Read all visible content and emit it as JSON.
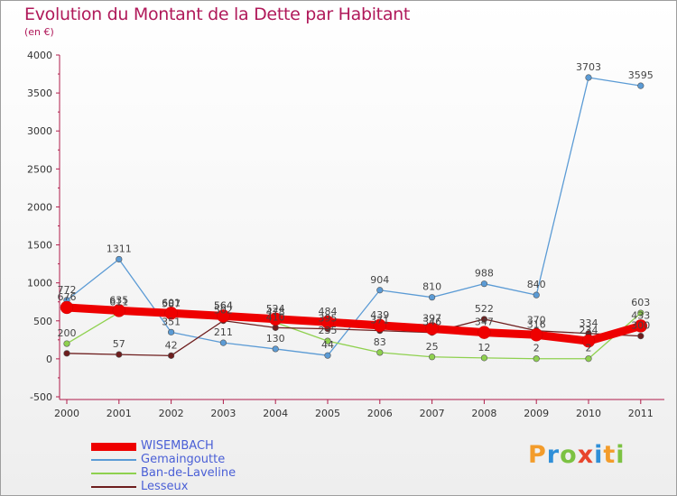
{
  "chart_data": {
    "type": "line",
    "title": "Evolution du Montant de la Dette par Habitant",
    "subtitle": "(en €)",
    "xlabel": "",
    "ylabel": "",
    "x": [
      "2000",
      "2001",
      "2002",
      "2003",
      "2004",
      "2005",
      "2006",
      "2007",
      "2008",
      "2009",
      "2010",
      "2011"
    ],
    "ylim": [
      -500,
      4000
    ],
    "yticks": [
      "-500",
      "0",
      "500",
      "1000",
      "1500",
      "2000",
      "2500",
      "3000",
      "3500",
      "4000"
    ],
    "grid": false,
    "legend_position": "bottom-left",
    "series": [
      {
        "name": "WISEMBACH",
        "color": "#ee0000",
        "values": [
          676,
          635,
          601,
          564,
          524,
          484,
          439,
          397,
          347,
          316,
          234,
          433
        ],
        "labels": [
          "676",
          "635",
          "601",
          "564",
          "524",
          "484",
          "439",
          "397",
          "347",
          "316",
          "234",
          "433"
        ]
      },
      {
        "name": "Gemaingoutte",
        "color": "#5b9bd5",
        "values": [
          772,
          1311,
          351,
          211,
          130,
          44,
          904,
          810,
          988,
          840,
          3703,
          3595
        ],
        "labels": [
          "772",
          "1311",
          "351",
          "211",
          "130",
          "44",
          "904",
          "810",
          "988",
          "840",
          "3703",
          "3595"
        ]
      },
      {
        "name": "Ban-de-Laveline",
        "color": "#8fd14f",
        "values": [
          200,
          611,
          587,
          564,
          478,
          235,
          83,
          25,
          12,
          2,
          2,
          603
        ],
        "labels": [
          "200",
          "611",
          "587",
          "564",
          "478",
          "235",
          "83",
          "25",
          "12",
          "2",
          "2",
          "603"
        ]
      },
      {
        "name": "Lesseux",
        "color": "#6e1e1e",
        "values": [
          72,
          57,
          42,
          502,
          410,
          395,
          371,
          346,
          522,
          370,
          334,
          300
        ],
        "labels": [
          "",
          "57",
          "42",
          "502",
          "410",
          "395",
          "371",
          "346",
          "522",
          "370",
          "334",
          "300"
        ]
      }
    ]
  },
  "brand": {
    "letters": [
      "P",
      "r",
      "o",
      "x",
      "i",
      "t",
      "i"
    ],
    "colors": [
      "#f39c2b",
      "#2f8fd8",
      "#7cc242",
      "#e8452c",
      "#2f8fd8",
      "#f39c2b",
      "#7cc242"
    ]
  }
}
